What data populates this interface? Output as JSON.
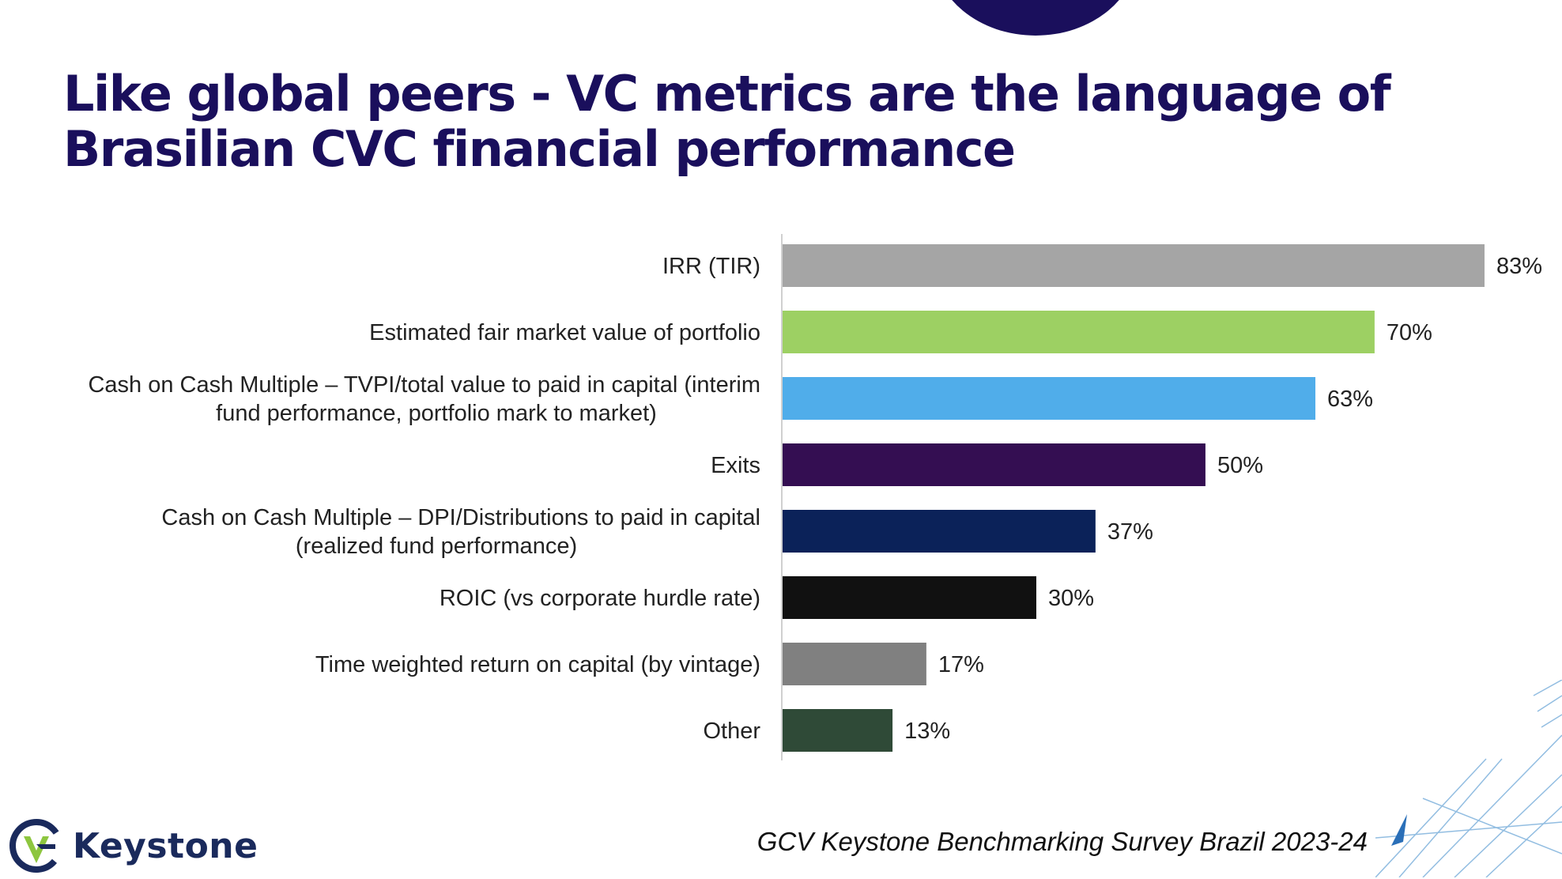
{
  "slide": {
    "title_line1": "Like global peers - VC metrics are the language of",
    "title_line2": "Brasilian CVC financial performance",
    "footer": "GCV Keystone Benchmarking Survey Brazil 2023-24",
    "logo_text": "Keystone",
    "logo_icon": "keystone-logo-icon"
  },
  "chart_data": {
    "type": "bar",
    "orientation": "horizontal",
    "title": "",
    "xlabel": "",
    "ylabel": "",
    "xlim": [
      0,
      83
    ],
    "grid": false,
    "legend": "none",
    "categories": [
      [
        "IRR (TIR)"
      ],
      [
        "Estimated fair market value of portfolio"
      ],
      [
        "Cash on Cash Multiple  – TVPI/total value to paid in capital (interim",
        "fund performance, portfolio mark to market)"
      ],
      [
        "Exits"
      ],
      [
        "Cash on Cash Multiple  – DPI/Distributions to paid in capital",
        "(realized fund performance)"
      ],
      [
        "ROIC (vs corporate hurdle rate)"
      ],
      [
        "Time weighted return on capital (by vintage)"
      ],
      [
        "Other"
      ]
    ],
    "values": [
      83,
      70,
      63,
      50,
      37,
      30,
      17,
      13
    ],
    "value_labels": [
      "83%",
      "70%",
      "63%",
      "50%",
      "37%",
      "30%",
      "17%",
      "13%"
    ],
    "colors": [
      "#a5a5a5",
      "#9dd063",
      "#50adea",
      "#340e52",
      "#0b2259",
      "#111111",
      "#808080",
      "#2f4a37"
    ]
  }
}
